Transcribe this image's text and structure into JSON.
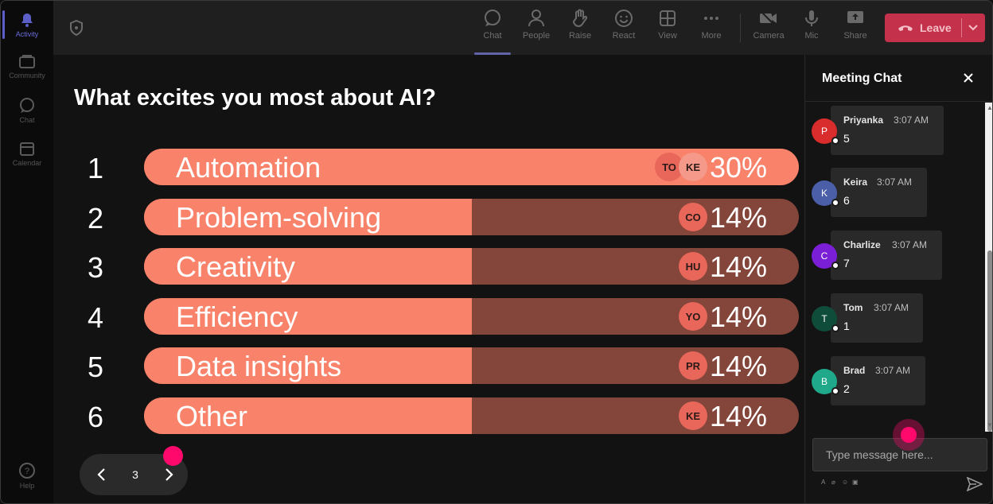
{
  "rail": {
    "items": [
      {
        "label": "Activity",
        "icon": "bell-icon",
        "active": true
      },
      {
        "label": "Community",
        "icon": "community-icon",
        "active": false
      },
      {
        "label": "Chat",
        "icon": "chat-icon",
        "active": false
      },
      {
        "label": "Calendar",
        "icon": "calendar-icon",
        "active": false
      }
    ],
    "help_label": "Help"
  },
  "toolbar": {
    "chat": "Chat",
    "people": "People",
    "raise": "Raise",
    "react": "React",
    "view": "View",
    "more": "More",
    "camera": "Camera",
    "mic": "Mic",
    "share": "Share",
    "leave": "Leave"
  },
  "poll": {
    "question": "What excites you most about AI?",
    "options": [
      {
        "num": "1",
        "label": "Automation",
        "pct": "30%",
        "fill": 1.0,
        "avatars": [
          "TO",
          "KE"
        ]
      },
      {
        "num": "2",
        "label": "Problem-solving",
        "pct": "14%",
        "fill": 0.5,
        "avatars": [
          "CO"
        ]
      },
      {
        "num": "3",
        "label": "Creativity",
        "pct": "14%",
        "fill": 0.5,
        "avatars": [
          "HU"
        ]
      },
      {
        "num": "4",
        "label": "Efficiency",
        "pct": "14%",
        "fill": 0.5,
        "avatars": [
          "YO"
        ]
      },
      {
        "num": "5",
        "label": "Data insights",
        "pct": "14%",
        "fill": 0.5,
        "avatars": [
          "PR"
        ]
      },
      {
        "num": "6",
        "label": "Other",
        "pct": "14%",
        "fill": 0.5,
        "avatars": [
          "KE"
        ]
      }
    ],
    "page": "3"
  },
  "chat": {
    "title": "Meeting Chat",
    "messages": [
      {
        "initial": "P",
        "name": "Priyanka",
        "time": "3:07 AM",
        "text": "5",
        "color": "#d92c2c"
      },
      {
        "initial": "K",
        "name": "Keira",
        "time": "3:07 AM",
        "text": "6",
        "color": "#4b5ea8"
      },
      {
        "initial": "C",
        "name": "Charlize",
        "time": "3:07 AM",
        "text": "7",
        "color": "#7a1fd6"
      },
      {
        "initial": "T",
        "name": "Tom",
        "time": "3:07 AM",
        "text": "1",
        "color": "#0f4d3a"
      },
      {
        "initial": "B",
        "name": "Brad",
        "time": "3:07 AM",
        "text": "2",
        "color": "#1fa88a"
      }
    ],
    "input_placeholder": "Type message here..."
  },
  "colors": {
    "bar_fill": "#f8826a",
    "bar_track": "#84463a",
    "leave": "#c4314b",
    "accent": "#6264a7",
    "click_marker": "#ff0a6c"
  }
}
